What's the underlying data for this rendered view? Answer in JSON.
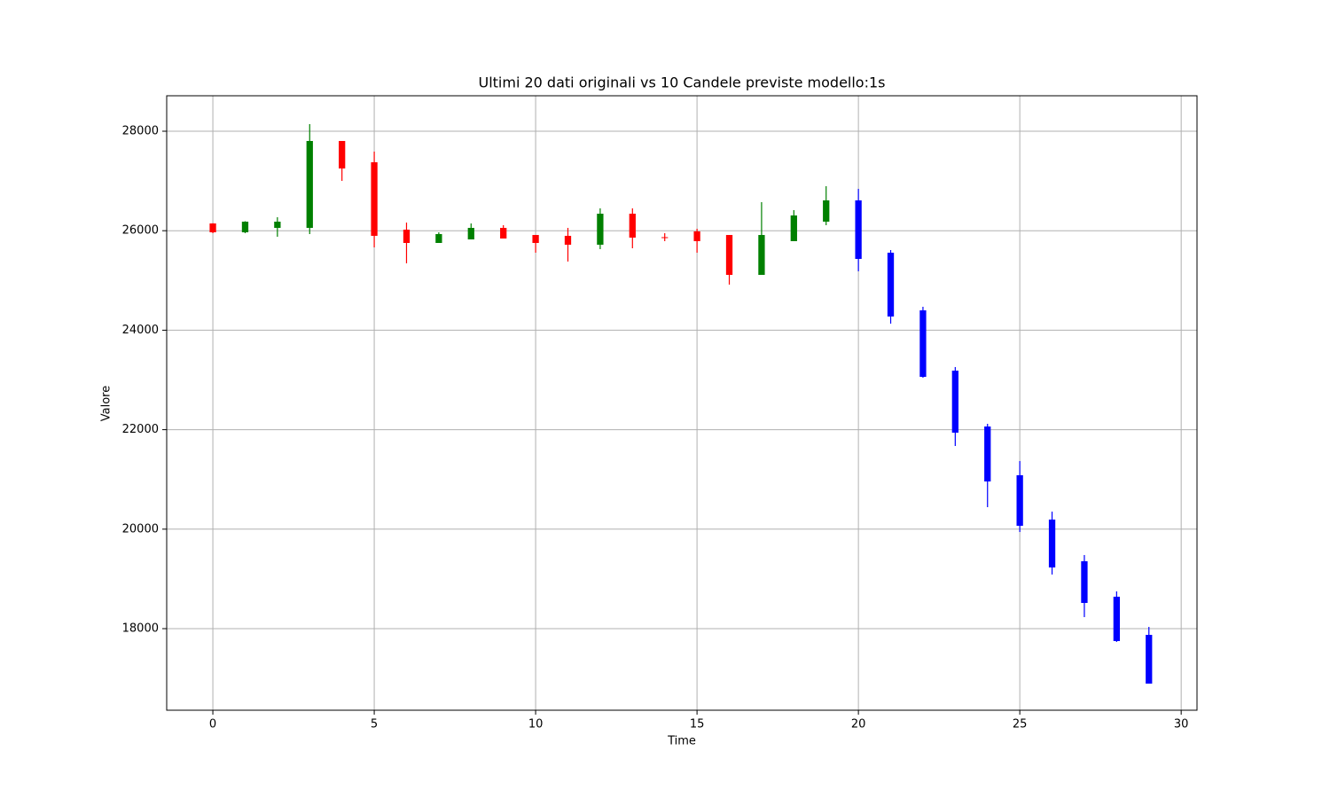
{
  "chart_data": {
    "type": "candlestick",
    "title": "Ultimi 20 dati originali vs 10 Candele previste modello:1s",
    "x_label": "Time",
    "y_label": "Valore",
    "series": [
      {
        "up_color": "green",
        "down_color": "red",
        "x": [
          0,
          1,
          2,
          3,
          4,
          5,
          6,
          7,
          8,
          9,
          10,
          11,
          12,
          13,
          14,
          15,
          16,
          17,
          18,
          19
        ],
        "open": [
          26146,
          25968,
          26057,
          26057,
          27804,
          27376,
          26021,
          25754,
          25825,
          26057,
          25914,
          25897,
          25718,
          26342,
          25870,
          25986,
          25914,
          25112,
          25790,
          26182
        ],
        "high": [
          26150,
          26190,
          26271,
          28143,
          27804,
          27590,
          26164,
          25968,
          26146,
          26111,
          25914,
          26057,
          26449,
          26449,
          25950,
          26039,
          25914,
          26574,
          26414,
          26895
        ],
        "low": [
          25950,
          25950,
          25879,
          25932,
          27002,
          25665,
          25344,
          25754,
          25825,
          25843,
          25558,
          25380,
          25629,
          25647,
          25790,
          25558,
          24916,
          25112,
          25790,
          26111
        ],
        "close": [
          25968,
          26182,
          26182,
          27804,
          27251,
          25897,
          25754,
          25932,
          26057,
          25843,
          25754,
          25718,
          26342,
          25861,
          25860,
          25790,
          25112,
          25914,
          26307,
          26610
        ]
      },
      {
        "color": "blue",
        "x": [
          20,
          21,
          22,
          23,
          24,
          25,
          26,
          27,
          28,
          29
        ],
        "open": [
          26610,
          25558,
          24399,
          23187,
          22064,
          21084,
          20193,
          19355,
          18642,
          17875
        ],
        "high": [
          26841,
          25611,
          24471,
          23259,
          22118,
          21369,
          20353,
          19480,
          18749,
          18035
        ],
        "low": [
          25184,
          24132,
          23045,
          21672,
          20442,
          19943,
          19088,
          18232,
          17733,
          16895
        ],
        "close": [
          25433,
          24275,
          23062,
          21940,
          20959,
          20068,
          19230,
          18517,
          17751,
          16895
        ]
      }
    ],
    "xlim": [
      -1.43,
      30.49
    ],
    "xticks": [
      0,
      5,
      10,
      15,
      20,
      25,
      30
    ],
    "ylim": [
      16360,
      28713
    ],
    "yticks": [
      18000,
      20000,
      22000,
      24000,
      26000,
      28000
    ],
    "grid": true
  }
}
